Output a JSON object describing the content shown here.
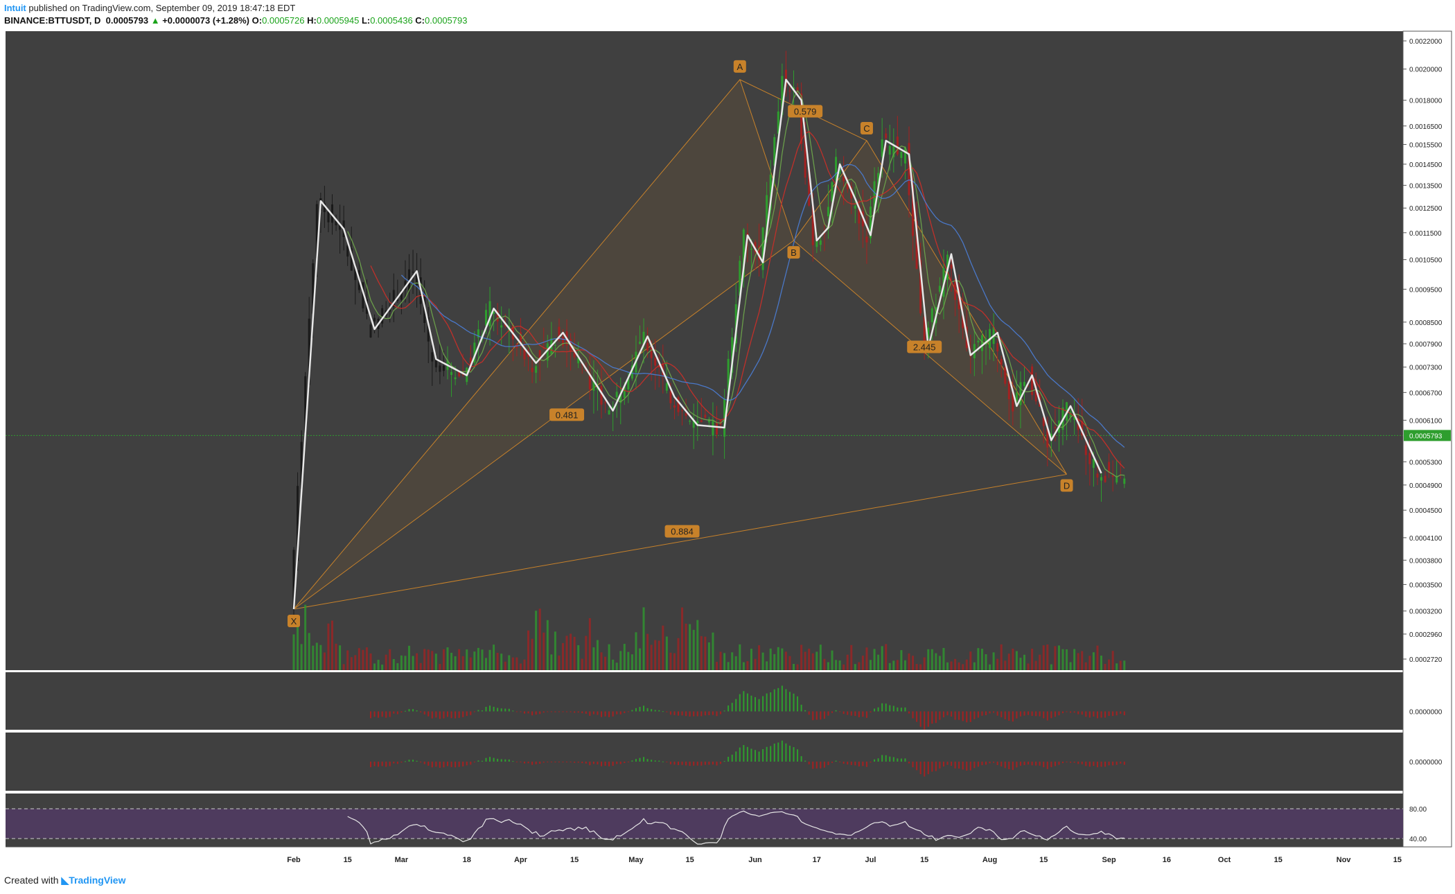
{
  "header": {
    "publisher": "Intuit",
    "published_text": "published on TradingView.com, September 09, 2019 18:47:18 EDT",
    "symbol": "BINANCE:BTTUSDT, D",
    "last": "0.0005793",
    "change": "+0.0000073 (+1.28%)",
    "open_label": "O:",
    "open": "0.0005726",
    "high_label": "H:",
    "high": "0.0005945",
    "low_label": "L:",
    "low": "0.0005436",
    "close_label": "C:",
    "close": "0.0005793"
  },
  "footer": {
    "created_with": "Created with",
    "brand": "TradingView"
  },
  "colors": {
    "panel_bg": "#404040",
    "up": "#2e9e2e",
    "down": "#a32121",
    "price_line": "#2e9e2e",
    "ma_blue": "#4a78c8",
    "ma_red": "#c0302a",
    "ma_green": "#6a9e4a",
    "pattern": "#c8822a",
    "zigzag": "#e8e8e8",
    "rsi_band": "#4e3b5e",
    "rsi_line": "#e6e6e6"
  },
  "chart_data": {
    "type": "candlestick",
    "price_axis_labels": [
      "0.0002720",
      "0.0002960",
      "0.0003200",
      "0.0003500",
      "0.0003800",
      "0.0004100",
      "0.0004500",
      "0.0004900",
      "0.0005300",
      "0.0006100",
      "0.0006700",
      "0.0007300",
      "0.0007900",
      "0.0008500",
      "0.0009500",
      "0.0010500",
      "0.0011500",
      "0.0012500",
      "0.0013500",
      "0.0014500",
      "0.0015500",
      "0.0016500",
      "0.0018000",
      "0.0020000",
      "0.0022000"
    ],
    "current_price": "0.0005793",
    "time_axis_labels": [
      {
        "t": "2019-02-01",
        "label": "Feb"
      },
      {
        "t": "2019-02-15",
        "label": "15"
      },
      {
        "t": "2019-03-01",
        "label": "Mar"
      },
      {
        "t": "2019-03-18",
        "label": "18"
      },
      {
        "t": "2019-04-01",
        "label": "Apr"
      },
      {
        "t": "2019-04-15",
        "label": "15"
      },
      {
        "t": "2019-05-01",
        "label": "May"
      },
      {
        "t": "2019-05-15",
        "label": "15"
      },
      {
        "t": "2019-06-01",
        "label": "Jun"
      },
      {
        "t": "2019-06-17",
        "label": "17"
      },
      {
        "t": "2019-07-01",
        "label": "Jul"
      },
      {
        "t": "2019-07-15",
        "label": "15"
      },
      {
        "t": "2019-08-01",
        "label": "Aug"
      },
      {
        "t": "2019-08-15",
        "label": "15"
      },
      {
        "t": "2019-09-01",
        "label": "Sep"
      },
      {
        "t": "2019-09-16",
        "label": "16"
      },
      {
        "t": "2019-10-01",
        "label": "Oct"
      },
      {
        "t": "2019-10-15",
        "label": "15"
      },
      {
        "t": "2019-11-01",
        "label": "Nov"
      },
      {
        "t": "2019-11-15",
        "label": "15"
      }
    ],
    "harmonic_pattern": {
      "points": [
        {
          "label": "X",
          "t": "2019-02-01",
          "price": 0.000322
        },
        {
          "label": "A",
          "t": "2019-05-28",
          "price": 0.00193
        },
        {
          "label": "B",
          "t": "2019-06-11",
          "price": 0.00112
        },
        {
          "label": "C",
          "t": "2019-06-30",
          "price": 0.00157
        },
        {
          "label": "D",
          "t": "2019-08-21",
          "price": 0.000508
        }
      ],
      "ratios": [
        {
          "label": "0.579",
          "t": "2019-06-14",
          "price": 0.00173
        },
        {
          "label": "0.481",
          "t": "2019-04-13",
          "price": 0.00062
        },
        {
          "label": "2.445",
          "t": "2019-07-15",
          "price": 0.00078
        },
        {
          "label": "0.884",
          "t": "2019-05-13",
          "price": 0.000418
        }
      ]
    },
    "zigzag": [
      {
        "t": "2019-02-01",
        "price": 0.000322
      },
      {
        "t": "2019-02-08",
        "price": 0.00128
      },
      {
        "t": "2019-02-14",
        "price": 0.001165
      },
      {
        "t": "2019-02-22",
        "price": 0.00083
      },
      {
        "t": "2019-03-05",
        "price": 0.00101
      },
      {
        "t": "2019-03-10",
        "price": 0.00075
      },
      {
        "t": "2019-03-18",
        "price": 0.00071
      },
      {
        "t": "2019-03-25",
        "price": 0.00089
      },
      {
        "t": "2019-04-05",
        "price": 0.00074
      },
      {
        "t": "2019-04-12",
        "price": 0.00082
      },
      {
        "t": "2019-04-25",
        "price": 0.00063
      },
      {
        "t": "2019-05-04",
        "price": 0.00081
      },
      {
        "t": "2019-05-11",
        "price": 0.00066
      },
      {
        "t": "2019-05-17",
        "price": 0.0006
      },
      {
        "t": "2019-05-24",
        "price": 0.000595
      },
      {
        "t": "2019-05-30",
        "price": 0.00114
      },
      {
        "t": "2019-06-03",
        "price": 0.00104
      },
      {
        "t": "2019-06-09",
        "price": 0.00193
      },
      {
        "t": "2019-06-13",
        "price": 0.0018
      },
      {
        "t": "2019-06-17",
        "price": 0.00112
      },
      {
        "t": "2019-06-20",
        "price": 0.00117
      },
      {
        "t": "2019-06-23",
        "price": 0.00145
      },
      {
        "t": "2019-06-27",
        "price": 0.00129
      },
      {
        "t": "2019-07-01",
        "price": 0.00114
      },
      {
        "t": "2019-07-05",
        "price": 0.00157
      },
      {
        "t": "2019-07-11",
        "price": 0.0015
      },
      {
        "t": "2019-07-16",
        "price": 0.00078
      },
      {
        "t": "2019-07-22",
        "price": 0.00107
      },
      {
        "t": "2019-07-27",
        "price": 0.00076
      },
      {
        "t": "2019-08-03",
        "price": 0.00082
      },
      {
        "t": "2019-08-08",
        "price": 0.00064
      },
      {
        "t": "2019-08-12",
        "price": 0.00071
      },
      {
        "t": "2019-08-17",
        "price": 0.00057
      },
      {
        "t": "2019-08-22",
        "price": 0.00064
      },
      {
        "t": "2019-08-30",
        "price": 0.00051
      }
    ],
    "rsi": {
      "levels": [
        "80.00",
        "40.00"
      ]
    }
  }
}
